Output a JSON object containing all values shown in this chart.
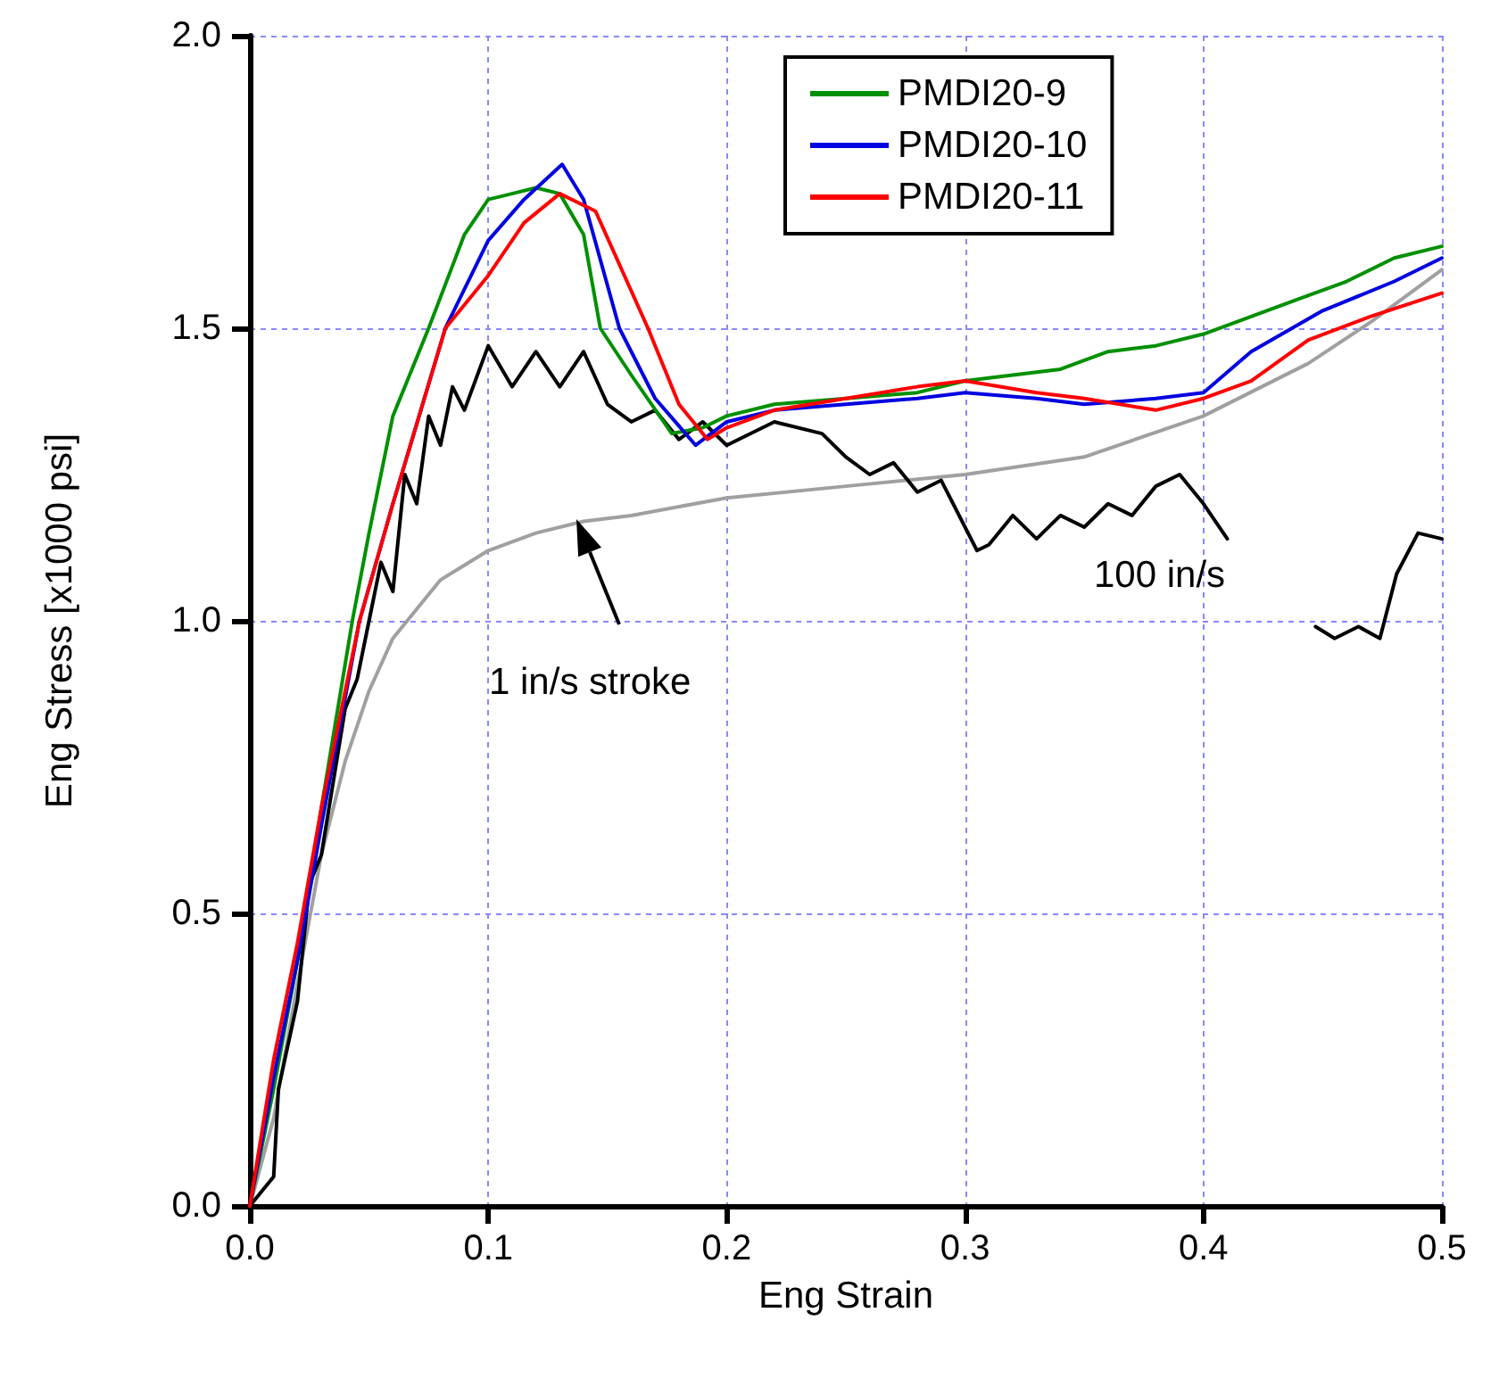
{
  "chart_data": {
    "type": "line",
    "xlabel": "Eng Strain",
    "ylabel": "Eng Stress [x1000 psi]",
    "xlim": [
      0,
      0.5
    ],
    "ylim": [
      0,
      2
    ],
    "xticks": [
      {
        "value": 0,
        "label": "0.0"
      },
      {
        "value": 0.1,
        "label": "0.1"
      },
      {
        "value": 0.2,
        "label": "0.2"
      },
      {
        "value": 0.3,
        "label": "0.3"
      },
      {
        "value": 0.4,
        "label": "0.4"
      },
      {
        "value": 0.5,
        "label": "0.5"
      }
    ],
    "yticks": [
      {
        "value": 0,
        "label": "0.0"
      },
      {
        "value": 0.5,
        "label": "0.5"
      },
      {
        "value": 1,
        "label": "1.0"
      },
      {
        "value": 1.5,
        "label": "1.5"
      },
      {
        "value": 2,
        "label": "2.0"
      }
    ],
    "grid": true,
    "legend": "top right",
    "marker": "none",
    "line_style": "solid",
    "annotations": [
      "1 in/s stroke",
      "100 in/s"
    ],
    "series": [
      {
        "name": "PMDI20-9",
        "color": "#009000",
        "x": [
          0,
          0.01,
          0.02,
          0.03,
          0.043,
          0.05,
          0.06,
          0.075,
          0.09,
          0.1,
          0.11,
          0.12,
          0.13,
          0.14,
          0.147,
          0.16,
          0.177,
          0.19,
          0.2,
          0.22,
          0.25,
          0.28,
          0.3,
          0.32,
          0.34,
          0.36,
          0.38,
          0.4,
          0.42,
          0.44,
          0.46,
          0.48,
          0.5
        ],
        "values": [
          0,
          0.2,
          0.42,
          0.68,
          1.0,
          1.15,
          1.35,
          1.5,
          1.66,
          1.72,
          1.73,
          1.74,
          1.73,
          1.66,
          1.5,
          1.42,
          1.32,
          1.33,
          1.35,
          1.37,
          1.38,
          1.39,
          1.41,
          1.42,
          1.43,
          1.46,
          1.47,
          1.49,
          1.52,
          1.55,
          1.58,
          1.62,
          1.64
        ]
      },
      {
        "name": "PMDI20-10",
        "color": "#0000e0",
        "x": [
          0,
          0.01,
          0.02,
          0.03,
          0.046,
          0.06,
          0.082,
          0.1,
          0.115,
          0.131,
          0.14,
          0.155,
          0.17,
          0.187,
          0.2,
          0.22,
          0.25,
          0.28,
          0.3,
          0.33,
          0.35,
          0.38,
          0.4,
          0.42,
          0.45,
          0.48,
          0.5
        ],
        "values": [
          0,
          0.22,
          0.42,
          0.65,
          1.0,
          1.2,
          1.5,
          1.65,
          1.72,
          1.78,
          1.72,
          1.5,
          1.38,
          1.3,
          1.34,
          1.36,
          1.37,
          1.38,
          1.39,
          1.38,
          1.37,
          1.38,
          1.39,
          1.46,
          1.53,
          1.58,
          1.62
        ]
      },
      {
        "name": "PMDI20-11",
        "color": "#ff0000",
        "x": [
          0,
          0.01,
          0.02,
          0.03,
          0.046,
          0.06,
          0.082,
          0.1,
          0.115,
          0.13,
          0.145,
          0.167,
          0.18,
          0.192,
          0.2,
          0.22,
          0.25,
          0.28,
          0.3,
          0.33,
          0.35,
          0.38,
          0.4,
          0.42,
          0.444,
          0.47,
          0.5
        ],
        "values": [
          0,
          0.25,
          0.45,
          0.68,
          1.0,
          1.2,
          1.5,
          1.59,
          1.68,
          1.73,
          1.7,
          1.5,
          1.37,
          1.31,
          1.33,
          1.36,
          1.38,
          1.4,
          1.41,
          1.39,
          1.38,
          1.36,
          1.38,
          1.41,
          1.48,
          1.52,
          1.56
        ]
      },
      {
        "color": "#a0a0a0",
        "x": [
          0,
          0.01,
          0.02,
          0.03,
          0.04,
          0.05,
          0.06,
          0.08,
          0.1,
          0.12,
          0.14,
          0.16,
          0.2,
          0.25,
          0.3,
          0.35,
          0.4,
          0.444,
          0.47,
          0.5
        ],
        "values": [
          0,
          0.15,
          0.38,
          0.6,
          0.76,
          0.88,
          0.97,
          1.07,
          1.12,
          1.15,
          1.17,
          1.18,
          1.21,
          1.23,
          1.25,
          1.28,
          1.35,
          1.44,
          1.51,
          1.6
        ]
      },
      {
        "color": "#000000",
        "x": [
          0,
          0.01,
          0.012,
          0.02,
          0.025,
          0.03,
          0.04,
          0.045,
          0.05,
          0.055,
          0.06,
          0.065,
          0.07,
          0.075,
          0.08,
          0.085,
          0.09,
          0.1,
          0.11,
          0.12,
          0.13,
          0.14,
          0.15,
          0.16,
          0.17,
          0.18,
          0.19,
          0.2,
          0.22,
          0.24,
          0.25,
          0.26,
          0.27,
          0.28,
          0.29,
          0.305,
          0.31,
          0.32,
          0.33,
          0.34,
          0.35,
          0.36,
          0.37,
          0.38,
          0.39,
          0.4,
          0.41,
          0.42,
          0.447,
          0.455,
          0.465,
          0.474,
          0.481,
          0.49,
          0.5
        ],
        "values": [
          0,
          0.05,
          0.2,
          0.35,
          0.55,
          0.6,
          0.85,
          0.9,
          1.0,
          1.1,
          1.05,
          1.25,
          1.2,
          1.35,
          1.3,
          1.4,
          1.36,
          1.47,
          1.4,
          1.46,
          1.4,
          1.46,
          1.37,
          1.34,
          1.36,
          1.31,
          1.34,
          1.3,
          1.34,
          1.32,
          1.28,
          1.25,
          1.27,
          1.22,
          1.24,
          1.12,
          1.13,
          1.18,
          1.14,
          1.18,
          1.16,
          1.2,
          1.18,
          1.23,
          1.25,
          1.2,
          1.14,
          null,
          0.99,
          0.97,
          0.99,
          0.97,
          1.08,
          1.15,
          1.14
        ]
      }
    ]
  }
}
